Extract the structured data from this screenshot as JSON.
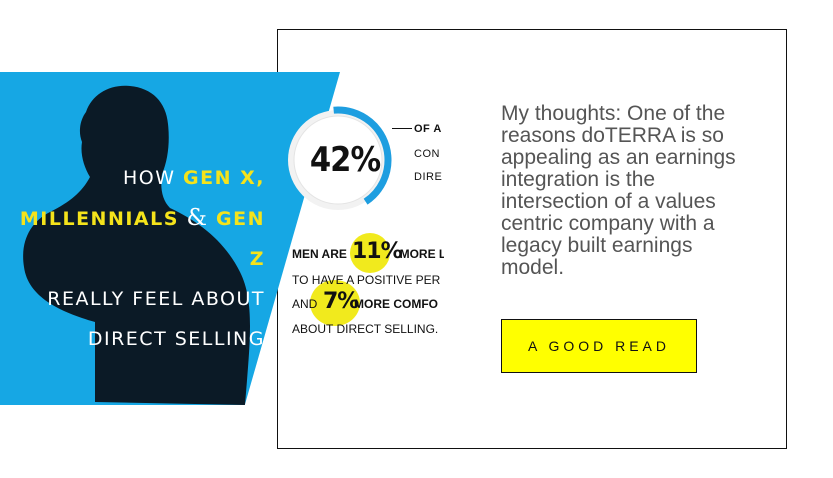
{
  "promo": {
    "line1_pre": "HOW ",
    "line1_hl": "GEN X,",
    "line2_hl": "MILLENNIALS",
    "line2_amp": "&",
    "line2_hl2": "GEN Z",
    "line3": "REALLY FEEL ABOUT",
    "line4": "DIRECT SELLING"
  },
  "stats": {
    "percent": "42%",
    "ring_fill_pct": 42,
    "cap1": "OF A",
    "cap2": "CON",
    "cap3": "DIRE",
    "row1_pre": "MEN ARE ",
    "row1_num": "11%",
    "row1_post": " MORE LI",
    "row2": "TO HAVE A POSITIVE PER",
    "row3_pre": "AND ",
    "row3_num": "7%",
    "row3_post": " MORE COMFO",
    "row4": "ABOUT DIRECT SELLING."
  },
  "thoughts": "My thoughts: One of the reasons doTERRA is so appealing as an earnings integration is the intersection of a values centric company with a legacy built earnings model.",
  "cta_label": "A GOOD READ",
  "colors": {
    "promo_bg": "#16a7e4",
    "highlight": "#f5e31b",
    "cta_bg": "#ffff00",
    "ring": "#1e9ee0"
  }
}
